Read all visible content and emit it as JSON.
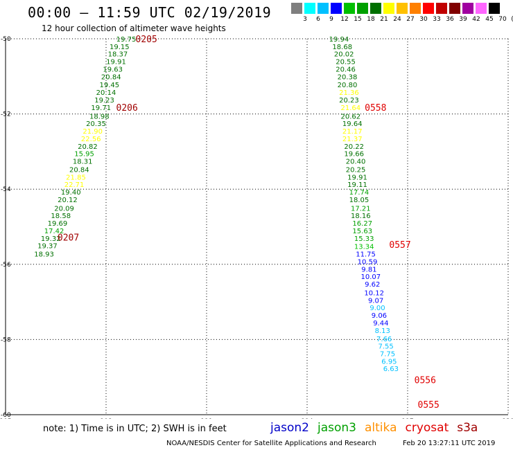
{
  "header": {
    "title": "00:00 – 11:59 UTC 02/19/2019",
    "subtitle": "12 hour collection of altimeter wave heights"
  },
  "color_scale": {
    "labels": [
      "3",
      "6",
      "9",
      "12",
      "15",
      "18",
      "21",
      "24",
      "27",
      "30",
      "33",
      "36",
      "39",
      "42",
      "45",
      "70",
      "(ft)"
    ],
    "colors": [
      "#7f7f7f",
      "#00ffff",
      "#00c0ff",
      "#0000ff",
      "#00c000",
      "#00a000",
      "#007000",
      "#ffff00",
      "#ffc000",
      "#ff8000",
      "#ff0000",
      "#c00000",
      "#800000",
      "#a000a0",
      "#ff66ff",
      "#000000"
    ]
  },
  "footer": {
    "note": "note:  1) Time is in UTC;  2) SWH is in feet",
    "legend": [
      {
        "name": "jason2",
        "color": "#0000c8"
      },
      {
        "name": "jason3",
        "color": "#00a000"
      },
      {
        "name": "altika",
        "color": "#ff9000"
      },
      {
        "name": "cryosat",
        "color": "#e00000"
      },
      {
        "name": "s3a",
        "color": "#a00000"
      }
    ],
    "credit": "NOAA/NESDIS Center for Satellite Applications and Research",
    "timestamp": "Feb 20 13:27:11 UTC 2019"
  },
  "chart_data": {
    "type": "scatter",
    "title": "00:00 – 11:59 UTC 02/19/2019",
    "xlabel": "",
    "ylabel": "",
    "xlim": [
      105,
      120
    ],
    "ylim": [
      -60,
      -50
    ],
    "x_ticks": [
      "105",
      "108",
      "111",
      "114",
      "117",
      "120"
    ],
    "y_ticks": [
      "-50",
      "-52",
      "-54",
      "-56",
      "-58",
      "-60"
    ],
    "grid": true,
    "series": [
      {
        "name": "s3a",
        "time_labels": [
          {
            "label": "0205",
            "lon": 108.88,
            "lat": -50.0,
            "color": "#a00000"
          },
          {
            "label": "0206",
            "lon": 108.3,
            "lat": -51.82,
            "color": "#a00000"
          },
          {
            "label": "0207",
            "lon": 106.55,
            "lat": -55.28,
            "color": "#a00000"
          }
        ],
        "points": [
          {
            "lon": 108.6,
            "lat": -50.0,
            "swh": 19.75
          },
          {
            "lon": 108.4,
            "lat": -50.2,
            "swh": 19.15
          },
          {
            "lon": 108.35,
            "lat": -50.4,
            "swh": 18.37
          },
          {
            "lon": 108.3,
            "lat": -50.6,
            "swh": 19.91
          },
          {
            "lon": 108.2,
            "lat": -50.8,
            "swh": 19.63
          },
          {
            "lon": 108.15,
            "lat": -51.0,
            "swh": 20.84
          },
          {
            "lon": 108.1,
            "lat": -51.22,
            "swh": 19.45
          },
          {
            "lon": 108.0,
            "lat": -51.42,
            "swh": 20.14
          },
          {
            "lon": 107.95,
            "lat": -51.62,
            "swh": 19.23
          },
          {
            "lon": 107.85,
            "lat": -51.82,
            "swh": 19.71
          },
          {
            "lon": 107.8,
            "lat": -52.05,
            "swh": 18.98
          },
          {
            "lon": 107.7,
            "lat": -52.25,
            "swh": 20.35
          },
          {
            "lon": 107.6,
            "lat": -52.45,
            "swh": 21.9
          },
          {
            "lon": 107.55,
            "lat": -52.65,
            "swh": 22.56
          },
          {
            "lon": 107.45,
            "lat": -52.85,
            "swh": 20.82
          },
          {
            "lon": 107.35,
            "lat": -53.05,
            "swh": 15.95
          },
          {
            "lon": 107.3,
            "lat": -53.25,
            "swh": 18.31
          },
          {
            "lon": 107.2,
            "lat": -53.47,
            "swh": 20.84
          },
          {
            "lon": 107.1,
            "lat": -53.67,
            "swh": 21.85
          },
          {
            "lon": 107.05,
            "lat": -53.87,
            "swh": 22.71
          },
          {
            "lon": 106.95,
            "lat": -54.07,
            "swh": 19.4
          },
          {
            "lon": 106.85,
            "lat": -54.27,
            "swh": 20.12
          },
          {
            "lon": 106.75,
            "lat": -54.5,
            "swh": 20.09
          },
          {
            "lon": 106.65,
            "lat": -54.7,
            "swh": 18.58
          },
          {
            "lon": 106.55,
            "lat": -54.9,
            "swh": 19.69
          },
          {
            "lon": 106.45,
            "lat": -55.1,
            "swh": 17.42
          },
          {
            "lon": 106.35,
            "lat": -55.3,
            "swh": 19.32
          },
          {
            "lon": 106.25,
            "lat": -55.5,
            "swh": 19.37
          },
          {
            "lon": 106.15,
            "lat": -55.72,
            "swh": 18.93
          }
        ]
      },
      {
        "name": "cryosat",
        "time_labels": [
          {
            "label": "0558",
            "lon": 115.72,
            "lat": -51.82,
            "color": "#e00000"
          },
          {
            "label": "0557",
            "lon": 116.45,
            "lat": -55.47,
            "color": "#e00000"
          },
          {
            "label": "0556",
            "lon": 117.2,
            "lat": -59.07,
            "color": "#e00000"
          },
          {
            "label": "0555",
            "lon": 117.3,
            "lat": -59.72,
            "color": "#e00000"
          }
        ],
        "points": [
          {
            "lon": 114.95,
            "lat": -50.0,
            "swh": 19.94
          },
          {
            "lon": 115.05,
            "lat": -50.2,
            "swh": 18.68
          },
          {
            "lon": 115.1,
            "lat": -50.4,
            "swh": 20.02
          },
          {
            "lon": 115.15,
            "lat": -50.6,
            "swh": 20.55
          },
          {
            "lon": 115.15,
            "lat": -50.8,
            "swh": 20.46
          },
          {
            "lon": 115.2,
            "lat": -51.0,
            "swh": 20.38
          },
          {
            "lon": 115.2,
            "lat": -51.22,
            "swh": 20.8
          },
          {
            "lon": 115.25,
            "lat": -51.42,
            "swh": 21.36
          },
          {
            "lon": 115.25,
            "lat": -51.62,
            "swh": 20.23
          },
          {
            "lon": 115.3,
            "lat": -51.82,
            "swh": 21.64
          },
          {
            "lon": 115.3,
            "lat": -52.05,
            "swh": 20.62
          },
          {
            "lon": 115.35,
            "lat": -52.25,
            "swh": 19.64
          },
          {
            "lon": 115.35,
            "lat": -52.45,
            "swh": 21.17
          },
          {
            "lon": 115.35,
            "lat": -52.65,
            "swh": 21.37
          },
          {
            "lon": 115.4,
            "lat": -52.85,
            "swh": 20.22
          },
          {
            "lon": 115.4,
            "lat": -53.05,
            "swh": 19.66
          },
          {
            "lon": 115.45,
            "lat": -53.25,
            "swh": 20.4
          },
          {
            "lon": 115.45,
            "lat": -53.47,
            "swh": 20.25
          },
          {
            "lon": 115.5,
            "lat": -53.67,
            "swh": 19.91
          },
          {
            "lon": 115.5,
            "lat": -53.87,
            "swh": 19.11
          },
          {
            "lon": 115.55,
            "lat": -54.07,
            "swh": 17.74
          },
          {
            "lon": 115.55,
            "lat": -54.27,
            "swh": 18.05
          },
          {
            "lon": 115.6,
            "lat": -54.5,
            "swh": 17.21
          },
          {
            "lon": 115.6,
            "lat": -54.7,
            "swh": 18.16
          },
          {
            "lon": 115.65,
            "lat": -54.9,
            "swh": 16.27
          },
          {
            "lon": 115.65,
            "lat": -55.1,
            "swh": 15.63
          },
          {
            "lon": 115.7,
            "lat": -55.3,
            "swh": 15.33
          },
          {
            "lon": 115.7,
            "lat": -55.52,
            "swh": 13.34
          },
          {
            "lon": 115.75,
            "lat": -55.72,
            "swh": 11.75
          },
          {
            "lon": 115.8,
            "lat": -55.92,
            "swh": 10.59
          },
          {
            "lon": 115.85,
            "lat": -56.12,
            "swh": 9.81
          },
          {
            "lon": 115.9,
            "lat": -56.32,
            "swh": 10.07
          },
          {
            "lon": 115.95,
            "lat": -56.52,
            "swh": 9.62
          },
          {
            "lon": 116.0,
            "lat": -56.75,
            "swh": 10.12
          },
          {
            "lon": 116.05,
            "lat": -56.95,
            "swh": 9.07
          },
          {
            "lon": 116.1,
            "lat": -57.15,
            "swh": 9.0
          },
          {
            "lon": 116.15,
            "lat": -57.35,
            "swh": 9.06
          },
          {
            "lon": 116.2,
            "lat": -57.55,
            "swh": 9.44
          },
          {
            "lon": 116.25,
            "lat": -57.75,
            "swh": 8.13
          },
          {
            "lon": 116.3,
            "lat": -57.97,
            "swh": 7.66
          },
          {
            "lon": 116.35,
            "lat": -58.17,
            "swh": 7.55
          },
          {
            "lon": 116.4,
            "lat": -58.37,
            "swh": 7.75
          },
          {
            "lon": 116.45,
            "lat": -58.57,
            "swh": 6.95
          },
          {
            "lon": 116.5,
            "lat": -58.77,
            "swh": 6.63
          }
        ]
      }
    ]
  }
}
